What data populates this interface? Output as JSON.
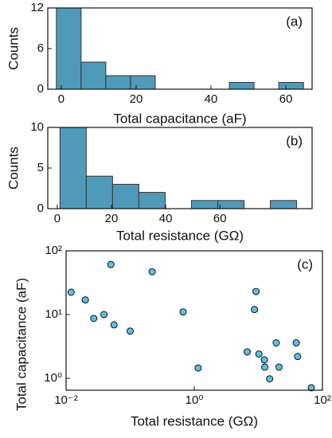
{
  "chart_data": [
    {
      "type": "histogram",
      "panel_label": "(a)",
      "xlabel": "Total capacitance (aF)",
      "ylabel": "Counts",
      "bins": [
        -1.3,
        5.3,
        11.9,
        18.5,
        25.1,
        31.7,
        38.3,
        44.9,
        51.5,
        58.1,
        64.7
      ],
      "values": [
        12,
        4,
        2,
        2,
        0,
        0,
        0,
        1,
        0,
        1
      ],
      "color": "#4f9ab8",
      "xlim": [
        -3.6,
        67
      ],
      "xticks": [
        0,
        20,
        40,
        60
      ],
      "ylim": [
        0,
        12
      ],
      "yticks": [
        0,
        6,
        12
      ]
    },
    {
      "type": "histogram",
      "panel_label": "(b)",
      "xlabel": "Total resistance (GΩ)",
      "ylabel": "Counts",
      "bins": [
        1,
        10.7,
        20.4,
        30.1,
        39.8,
        49.5,
        59.2,
        68.9,
        78.6,
        88.3
      ],
      "values": [
        10,
        4,
        3,
        2,
        0,
        1,
        1,
        0,
        1
      ],
      "color": "#4f9ab8",
      "xlim": [
        -3.5,
        94
      ],
      "xticks": [
        0,
        20,
        40,
        60
      ],
      "ylim": [
        0,
        10
      ],
      "yticks": [
        0,
        5,
        10
      ]
    },
    {
      "type": "scatter",
      "panel_label": "(c)",
      "xlabel": "Total resistance (GΩ)",
      "ylabel": "Total capacitance (aF)",
      "log_x": true,
      "log_y": true,
      "color": "#5bc0e6",
      "x": [
        0.012,
        0.02,
        0.027,
        0.039,
        0.05,
        0.056,
        0.1,
        0.22,
        0.67,
        1.15,
        6.7,
        8.7,
        9.2,
        10.2,
        12.4,
        12.6,
        15,
        19,
        21,
        39,
        41,
        67
      ],
      "values": [
        22.4,
        17,
        8.7,
        10,
        61,
        6.9,
        5.5,
        47,
        11,
        1.45,
        2.6,
        12,
        23,
        2.4,
        1.95,
        1.5,
        0.98,
        3.6,
        1.5,
        3.6,
        2.2,
        0.71
      ],
      "xlim": [
        0.01,
        100
      ],
      "ylim": [
        0.65,
        100
      ],
      "xticks": [
        {
          "value": 0.01,
          "label": "10⁻²"
        },
        {
          "value": 1,
          "label": "10⁰"
        },
        {
          "value": 100,
          "label": "10²"
        }
      ],
      "yticks": [
        {
          "value": 1,
          "label": "10⁰"
        },
        {
          "value": 10,
          "label": "10¹"
        },
        {
          "value": 100,
          "label": "10²"
        }
      ]
    }
  ]
}
